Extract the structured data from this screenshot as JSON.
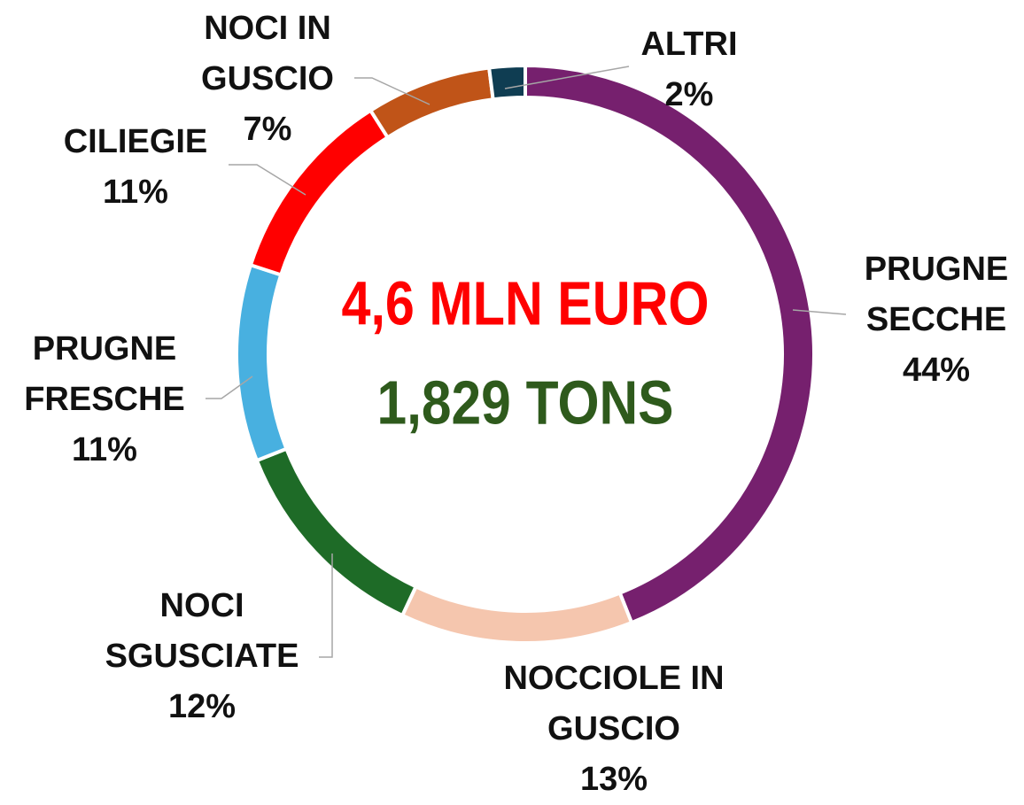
{
  "chart_data": {
    "type": "donut",
    "categories": [
      "PRUGNE SECCHE",
      "NOCCIOLE IN GUSCIO",
      "NOCI SGUSCIATE",
      "PRUGNE FRESCHE",
      "CILIEGIE",
      "NOCI IN GUSCIO",
      "ALTRI"
    ],
    "values": [
      44,
      13,
      12,
      11,
      11,
      7,
      2
    ],
    "value_labels": [
      "44%",
      "13%",
      "12%",
      "11%",
      "11%",
      "7%",
      "2%"
    ],
    "colors": [
      "#76206e",
      "#f5c6ae",
      "#1e6b27",
      "#48b0e0",
      "#ff0000",
      "#c05418",
      "#0f3d52"
    ],
    "annotations": [
      {
        "text": "4,6 MLN EURO",
        "color": "#ff0000"
      },
      {
        "text": "1,829 TONS",
        "color": "#2e5a1c"
      }
    ]
  }
}
